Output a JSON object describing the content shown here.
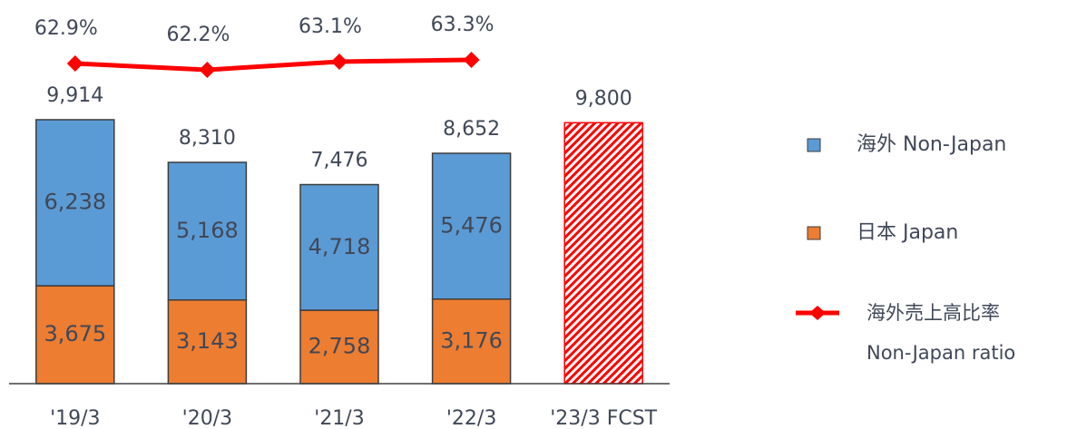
{
  "chart_data": {
    "type": "bar",
    "categories": [
      "'19/3",
      "'20/3",
      "'21/3",
      "'22/3",
      "'23/3 FCST"
    ],
    "series": [
      {
        "name": "日本  Japan",
        "color": "#ed7d31",
        "values": [
          3675,
          3143,
          2758,
          3176,
          null
        ],
        "value_labels": [
          "3,675",
          "3,143",
          "2,758",
          "3,176",
          null
        ]
      },
      {
        "name": "海外  Non-Japan",
        "color": "#5b9bd5",
        "values": [
          6238,
          5168,
          4718,
          5476,
          null
        ],
        "value_labels": [
          "6,238",
          "5,168",
          "4,718",
          "5,476",
          null
        ]
      },
      {
        "name": "海外売上高比率\nNon-Japan ratio",
        "type": "line",
        "axis": "y2",
        "color": "#ff0000",
        "values": [
          62.9,
          62.2,
          63.1,
          63.3,
          null
        ],
        "value_labels": [
          "62.9%",
          "62.2%",
          "63.1%",
          "63.3%",
          null
        ]
      }
    ],
    "totals": {
      "color": "#ff0000",
      "pattern": "hatch",
      "values": [
        9914,
        8310,
        7476,
        8652,
        9800
      ],
      "value_labels": [
        "9,914",
        "8,310",
        "7,476",
        "8,652",
        "9,800"
      ]
    },
    "ylim": [
      0,
      14000
    ],
    "y2lim": [
      27.6,
      68.7
    ]
  }
}
